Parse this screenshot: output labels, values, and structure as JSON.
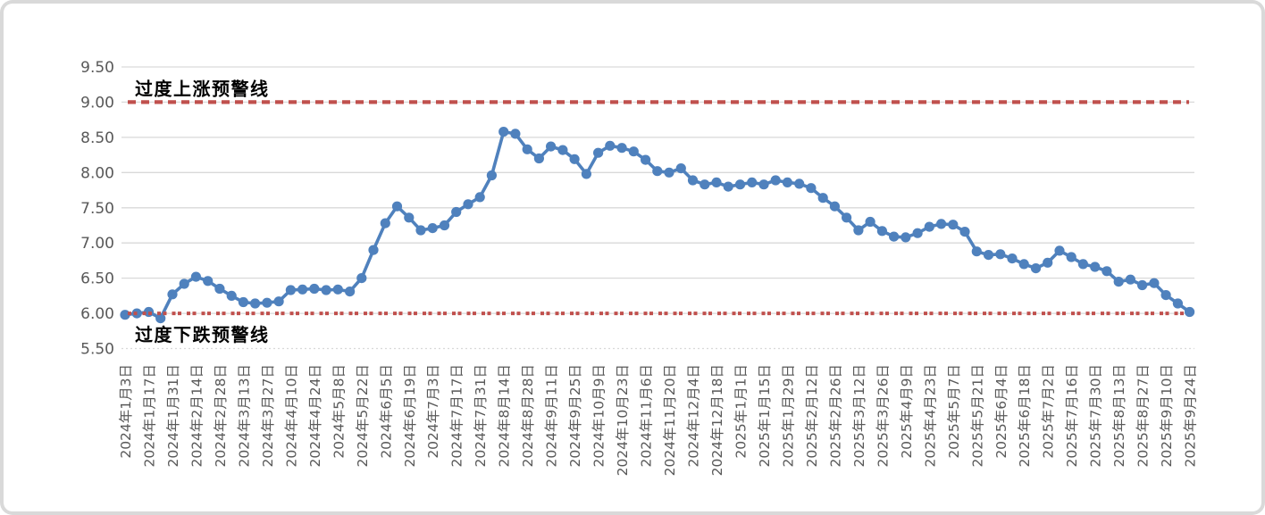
{
  "chart_data": {
    "type": "line",
    "grid": true,
    "ylim": [
      5.5,
      9.5
    ],
    "ytick_step": 0.5,
    "ytick_labels": [
      "9.50",
      "9.00",
      "8.50",
      "8.00",
      "7.50",
      "7.00",
      "6.50",
      "6.00",
      "5.50"
    ],
    "x_label_every": 2,
    "x_labels": [
      "2024年1月3日",
      "2024年1月17日",
      "2024年1月31日",
      "2024年2月14日",
      "2024年2月28日",
      "2024年3月13日",
      "2024年3月27日",
      "2024年4月10日",
      "2024年4月24日",
      "2024年5月8日",
      "2024年5月22日",
      "2024年6月5日",
      "2024年6月19日",
      "2024年7月3日",
      "2024年7月17日",
      "2024年7月31日",
      "2024年8月14日",
      "2024年8月28日",
      "2024年9月11日",
      "2024年9月25日",
      "2024年10月9日",
      "2024年10月23日",
      "2024年11月6日",
      "2024年11月20日",
      "2024年12月4日",
      "2024年12月18日",
      "2025年1月1日",
      "2025年1月15日",
      "2025年1月29日",
      "2025年2月12日",
      "2025年2月26日",
      "2025年3月12日",
      "2025年3月26日",
      "2025年4月9日",
      "2025年4月23日",
      "2025年5月7日",
      "2025年5月21日",
      "2025年6月4日",
      "2025年6月18日",
      "2025年7月2日",
      "2025年7月16日",
      "2025年7月30日",
      "2025年8月13日",
      "2025年8月27日",
      "2025年9月10日",
      "2025年9月24日"
    ],
    "values": [
      5.98,
      6.0,
      6.02,
      5.93,
      6.27,
      6.42,
      6.52,
      6.46,
      6.35,
      6.25,
      6.16,
      6.14,
      6.15,
      6.17,
      6.33,
      6.34,
      6.35,
      6.33,
      6.34,
      6.31,
      6.5,
      6.9,
      7.28,
      7.52,
      7.36,
      7.18,
      7.21,
      7.25,
      7.44,
      7.55,
      7.65,
      7.96,
      8.58,
      8.55,
      8.33,
      8.2,
      8.37,
      8.32,
      8.19,
      7.98,
      8.28,
      8.38,
      8.35,
      8.3,
      8.18,
      8.02,
      8.0,
      8.06,
      7.89,
      7.83,
      7.86,
      7.8,
      7.83,
      7.86,
      7.83,
      7.89,
      7.86,
      7.84,
      7.78,
      7.64,
      7.52,
      7.36,
      7.18,
      7.3,
      7.17,
      7.09,
      7.08,
      7.14,
      7.23,
      7.27,
      7.26,
      7.16,
      6.88,
      6.83,
      6.84,
      6.78,
      6.7,
      6.64,
      6.72,
      6.89,
      6.8,
      6.7,
      6.66,
      6.6,
      6.45,
      6.48,
      6.4,
      6.43,
      6.26,
      6.14,
      6.02
    ],
    "series_color": "#4F81BD",
    "grid_color": "#D9D9D9",
    "axis_text_color": "#595959",
    "upper_warning": {
      "label": "过度上涨预警线",
      "value": 9.0,
      "color": "#C0504D"
    },
    "lower_warning": {
      "label": "过度下跌预警线",
      "value": 6.0,
      "color": "#C0504D"
    }
  }
}
